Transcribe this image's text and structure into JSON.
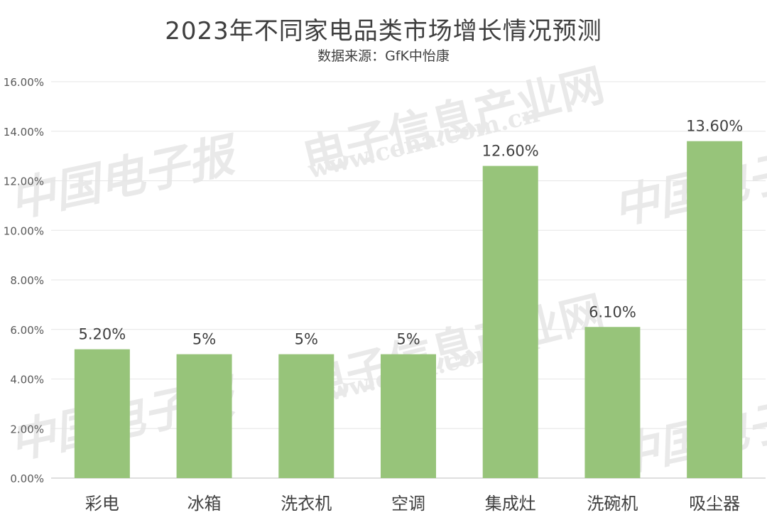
{
  "chart_data": {
    "type": "bar",
    "title": "2023年不同家电品类市场增长情况预测",
    "subtitle": "数据来源：GfK中怡康",
    "categories": [
      "彩电",
      "冰箱",
      "洗衣机",
      "空调",
      "集成灶",
      "洗碗机",
      "吸尘器"
    ],
    "values": [
      5.2,
      5,
      5,
      5,
      12.6,
      6.1,
      13.6
    ],
    "data_labels": [
      "5.20%",
      "5%",
      "5%",
      "5%",
      "12.60%",
      "6.10%",
      "13.60%"
    ],
    "ylim": [
      0,
      16
    ],
    "yticks": [
      0,
      2,
      4,
      6,
      8,
      10,
      12,
      14,
      16
    ],
    "ytick_labels": [
      "0.00%",
      "2.00%",
      "4.00%",
      "6.00%",
      "8.00%",
      "10.00%",
      "12.00%",
      "14.00%",
      "16.00%"
    ],
    "xlabel": "",
    "ylabel": "",
    "grid": true,
    "bar_color": "#97c47a",
    "gridline_color": "#e6e6e6"
  },
  "watermarks": {
    "site_name": "电子信息产业网",
    "site_url": "www.cena.com.cn",
    "paper_name": "中国电子报"
  }
}
